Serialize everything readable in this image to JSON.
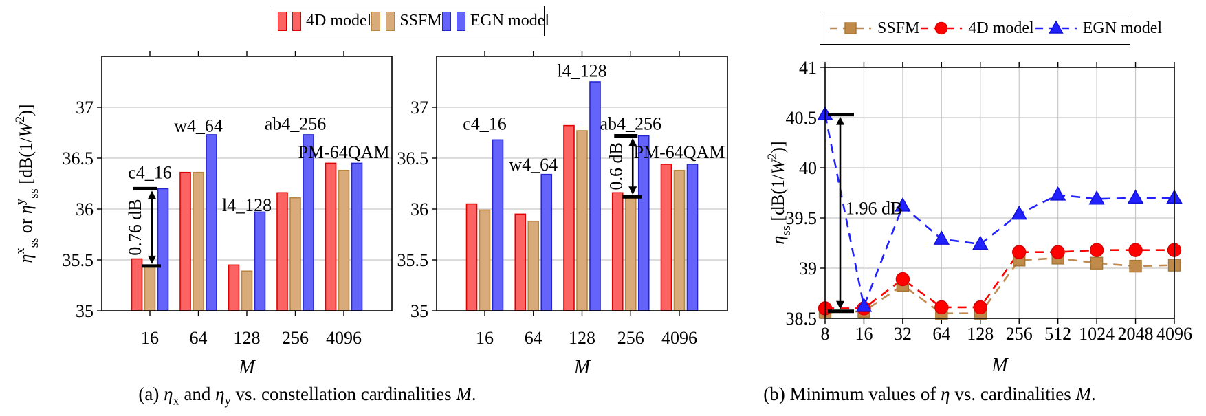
{
  "figure": {
    "background": "#ffffff",
    "axis_color": "#000000",
    "grid_color": "#c8c8c8"
  },
  "legend_a": {
    "position": "top-center-of-subfigure-a",
    "items": [
      {
        "label": "4D model",
        "fill": "#fc6464",
        "stroke": "#e10000"
      },
      {
        "label": "SSFM",
        "fill": "#d9ab7a",
        "stroke": "#b9863d"
      },
      {
        "label": "EGN model",
        "fill": "#6464fa",
        "stroke": "#2525cf"
      }
    ]
  },
  "legend_b": {
    "position": "top-center-of-subfigure-b",
    "items": [
      {
        "label": "SSFM",
        "marker": "square",
        "line_color": "#c08a50",
        "marker_fill": "#bf8a4a",
        "marker_stroke": "#a87634"
      },
      {
        "label": "4D model",
        "marker": "circle",
        "line_color": "#fe0000",
        "marker_fill": "#fe0000",
        "marker_stroke": "#d90000"
      },
      {
        "label": "EGN model",
        "marker": "triangle",
        "line_color": "#2222ff",
        "marker_fill": "#2222ff",
        "marker_stroke": "#1111d8"
      }
    ]
  },
  "captions": {
    "a_text": "(a) η_x and η_y vs. constellation cardinalities M.",
    "a_tokens": [
      {
        "t": "(a) "
      },
      {
        "t": "η",
        "i": 1
      },
      {
        "t": "x",
        "sub": 1
      },
      {
        "t": " and "
      },
      {
        "t": "η",
        "i": 1
      },
      {
        "t": "y",
        "sub": 1
      },
      {
        "t": " vs. constellation cardinalities "
      },
      {
        "t": "M",
        "i": 1
      },
      {
        "t": "."
      }
    ],
    "b_text": "(b) Minimum values of η vs. cardinalities M.",
    "b_tokens": [
      {
        "t": "(b) Minimum values of "
      },
      {
        "t": "η",
        "i": 1
      },
      {
        "t": " vs. cardinalities "
      },
      {
        "t": "M",
        "i": 1
      },
      {
        "t": "."
      }
    ]
  },
  "chart_data": [
    {
      "id": "eta-x-bar",
      "type": "bar",
      "xlabel": "M",
      "ylabel": "η^x_ss or η^y_ss [dB(1/W^2)]",
      "ylabel_tokens": [
        {
          "t": "η",
          "i": 1
        },
        {
          "t": "x",
          "sup": 1
        },
        {
          "t": "ss",
          "sub": 1
        },
        {
          "t": " or "
        },
        {
          "t": "η",
          "i": 1
        },
        {
          "t": "y",
          "sup": 1
        },
        {
          "t": "ss",
          "sub": 1
        },
        {
          "t": " [dB(1/"
        },
        {
          "t": "W",
          "i": 1
        },
        {
          "t": "2",
          "sup": 1
        },
        {
          "t": ")]"
        }
      ],
      "ylim": [
        35,
        37.5
      ],
      "yticks": [
        35,
        35.5,
        36,
        36.5,
        37
      ],
      "grid": "y",
      "categories": [
        "16",
        "64",
        "128",
        "256",
        "4096"
      ],
      "series": [
        {
          "name": "4D model",
          "fill": "#fc6464",
          "stroke": "#e10000",
          "values": [
            35.51,
            36.36,
            35.45,
            36.16,
            36.45
          ]
        },
        {
          "name": "SSFM",
          "fill": "#d9ab7a",
          "stroke": "#b9863d",
          "values": [
            35.44,
            36.36,
            35.39,
            36.11,
            36.38
          ]
        },
        {
          "name": "EGN model",
          "fill": "#6464fa",
          "stroke": "#2525cf",
          "values": [
            36.2,
            36.73,
            35.97,
            36.73,
            36.45
          ]
        }
      ],
      "point_labels": [
        {
          "text": "c4_16",
          "cat": 0,
          "value": 36.3
        },
        {
          "text": "w4_64",
          "cat": 1,
          "value": 36.76
        },
        {
          "text": "l4_128",
          "cat": 2,
          "value": 35.98
        },
        {
          "text": "ab4_256",
          "cat": 3,
          "value": 36.78
        },
        {
          "text": "PM-64QAM",
          "cat": 4,
          "value": 36.5
        }
      ],
      "arrow": {
        "text": "0.76 dB",
        "cat": 0,
        "from": 35.44,
        "to": 36.2,
        "rotated": true
      }
    },
    {
      "id": "eta-y-bar",
      "type": "bar",
      "xlabel": "M",
      "ylabel": "",
      "ylabel_tokens": [],
      "ylim": [
        35,
        37.5
      ],
      "yticks": [
        35,
        35.5,
        36,
        36.5,
        37
      ],
      "grid": "y",
      "categories": [
        "16",
        "64",
        "128",
        "256",
        "4096"
      ],
      "series": [
        {
          "name": "4D model",
          "fill": "#fc6464",
          "stroke": "#e10000",
          "values": [
            36.05,
            35.95,
            36.82,
            36.16,
            36.44
          ]
        },
        {
          "name": "SSFM",
          "fill": "#d9ab7a",
          "stroke": "#b9863d",
          "values": [
            35.99,
            35.88,
            36.77,
            36.12,
            36.38
          ]
        },
        {
          "name": "EGN model",
          "fill": "#6464fa",
          "stroke": "#2525cf",
          "values": [
            36.68,
            36.34,
            37.25,
            36.72,
            36.44
          ]
        }
      ],
      "point_labels": [
        {
          "text": "c4_16",
          "cat": 0,
          "value": 36.78
        },
        {
          "text": "w4_64",
          "cat": 1,
          "value": 36.38
        },
        {
          "text": "l4_128",
          "cat": 2,
          "value": 37.3
        },
        {
          "text": "ab4_256",
          "cat": 3,
          "value": 36.78
        },
        {
          "text": "PM-64QAM",
          "cat": 4,
          "value": 36.5
        }
      ],
      "arrow": {
        "text": "0.6 dB",
        "cat": 3,
        "from": 36.12,
        "to": 36.72,
        "rotated": true
      }
    },
    {
      "id": "eta-min-line",
      "type": "line",
      "xlabel": "M",
      "ylabel": "η_ss [dB(1/W^2)]",
      "ylabel_tokens": [
        {
          "t": "η",
          "i": 1
        },
        {
          "t": "ss",
          "sub": 1
        },
        {
          "t": " [dB(1/"
        },
        {
          "t": "W",
          "i": 1
        },
        {
          "t": "2",
          "sup": 1
        },
        {
          "t": ")]"
        }
      ],
      "ylim": [
        38.5,
        41
      ],
      "yticks": [
        38.5,
        39,
        39.5,
        40,
        40.5,
        41
      ],
      "grid": "both",
      "x": [
        "8",
        "16",
        "32",
        "64",
        "128",
        "256",
        "512",
        "1024",
        "2048",
        "4096"
      ],
      "series": [
        {
          "name": "SSFM",
          "marker": "square",
          "color": "#c08a50",
          "marker_fill": "#bf8a4a",
          "marker_stroke": "#a87634",
          "values": [
            38.56,
            38.57,
            38.83,
            38.55,
            38.55,
            39.08,
            39.1,
            39.05,
            39.02,
            39.03
          ]
        },
        {
          "name": "4D model",
          "marker": "circle",
          "color": "#fe0000",
          "marker_fill": "#fe0000",
          "marker_stroke": "#d90000",
          "values": [
            38.6,
            38.6,
            38.89,
            38.61,
            38.61,
            39.16,
            39.16,
            39.18,
            39.18,
            39.18
          ]
        },
        {
          "name": "EGN model",
          "marker": "triangle",
          "color": "#2222ff",
          "marker_fill": "#2222ff",
          "marker_stroke": "#1111d8",
          "values": [
            40.53,
            38.62,
            39.62,
            39.29,
            39.24,
            39.54,
            39.73,
            39.69,
            39.7,
            39.7
          ]
        }
      ],
      "arrow": {
        "text": "1.96 dB",
        "x_index": 0,
        "from": 38.57,
        "to": 40.53,
        "rotated": false
      }
    }
  ]
}
